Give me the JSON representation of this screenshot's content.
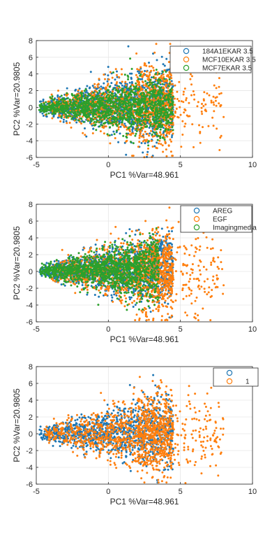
{
  "colors": {
    "blue": "#0072BD",
    "orange": "#EDB120",
    "orange_main": "#F08A24",
    "green": "#4DA832",
    "axis": "#262626",
    "grid": "#e6e6e6"
  },
  "chart_data": [
    {
      "type": "scatter",
      "xlabel": "PC1 %Var=48.961",
      "ylabel": "PC2 %Var=20.9805",
      "xlim": [
        -5,
        10
      ],
      "ylim": [
        -6,
        8
      ],
      "xticks": [
        "-5",
        "0",
        "5",
        "10"
      ],
      "yticks": [
        "-6",
        "-4",
        "-2",
        "0",
        "2",
        "4",
        "6",
        "8"
      ],
      "grid": true,
      "legend_position": "top-right",
      "series": [
        {
          "name": "184A1EKAR 3.5",
          "color": "#1f77b4",
          "spread": {
            "x": [
              -4.8,
              4.5
            ],
            "y_center": 0.6,
            "y_spread": 2.4
          }
        },
        {
          "name": "MCF10EKAR 3.5",
          "color": "#ff7f0e",
          "spread": {
            "x": [
              -4.5,
              8.0
            ],
            "y_center": 0.2,
            "y_spread": 2.8
          }
        },
        {
          "name": "MCF7EKAR 3.5",
          "color": "#2ca02c",
          "spread": {
            "x": [
              -4.8,
              4.5
            ],
            "y_center": 0.0,
            "y_spread": 1.8
          }
        }
      ]
    },
    {
      "type": "scatter",
      "xlabel": "PC1 %Var=48.961",
      "ylabel": "PC2 %Var=20.9805",
      "xlim": [
        -5,
        10
      ],
      "ylim": [
        -6,
        8
      ],
      "xticks": [
        "-5",
        "0",
        "5",
        "10"
      ],
      "yticks": [
        "-6",
        "-4",
        "-2",
        "0",
        "2",
        "4",
        "6",
        "8"
      ],
      "grid": true,
      "legend_position": "top-right",
      "series": [
        {
          "name": "AREG",
          "color": "#1f77b4",
          "spread": {
            "x": [
              -4.8,
              4.5
            ],
            "y_center": 0.5,
            "y_spread": 2.2
          }
        },
        {
          "name": "EGF",
          "color": "#ff7f0e",
          "spread": {
            "x": [
              -4.0,
              8.0
            ],
            "y_center": 0.0,
            "y_spread": 2.8
          }
        },
        {
          "name": "Imagingmedia",
          "color": "#2ca02c",
          "spread": {
            "x": [
              -4.8,
              3.5
            ],
            "y_center": 0.4,
            "y_spread": 2.0
          }
        }
      ]
    },
    {
      "type": "scatter",
      "xlabel": "PC1 %Var=48.961",
      "ylabel": "PC2 %Var=20.9805",
      "xlim": [
        -5,
        10
      ],
      "ylim": [
        -6,
        8
      ],
      "xticks": [
        "-5",
        "0",
        "5",
        "10"
      ],
      "yticks": [
        "-6",
        "-4",
        "-2",
        "0",
        "2",
        "4",
        "6",
        "8"
      ],
      "grid": true,
      "legend_position": "top-right",
      "series": [
        {
          "name": "",
          "color": "#1f77b4",
          "spread": {
            "x": [
              -4.8,
              4.5
            ],
            "y_center": 0.5,
            "y_spread": 2.2
          }
        },
        {
          "name": "1",
          "color": "#ff7f0e",
          "spread": {
            "x": [
              -4.5,
              8.0
            ],
            "y_center": 0.0,
            "y_spread": 2.8
          }
        }
      ]
    }
  ]
}
